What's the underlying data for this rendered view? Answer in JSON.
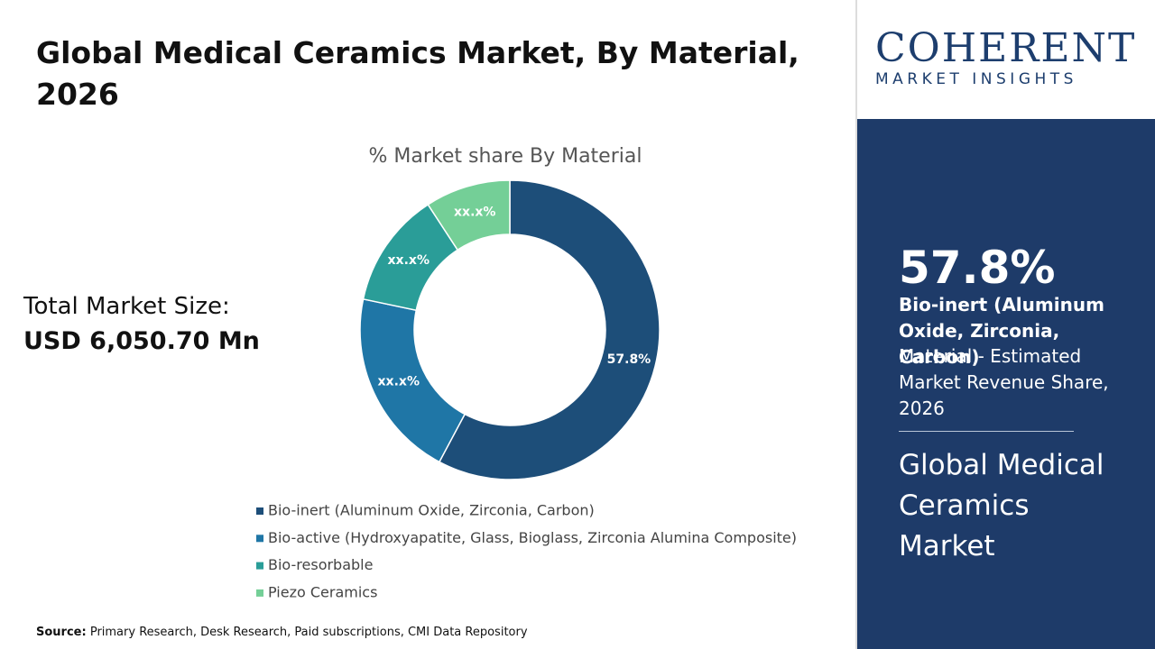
{
  "header": {
    "title": "Global Medical Ceramics Market, By Material, 2026"
  },
  "market_size": {
    "label": "Total Market Size:",
    "value": "USD 6,050.70 Mn"
  },
  "chart_data": {
    "type": "donut",
    "title": "% Market share By Material",
    "categories": [
      "Bio-inert (Aluminum Oxide, Zirconia, Carbon)",
      "Bio-active (Hydroxyapatite, Glass, Bioglass, Zirconia Alumina Composite)",
      "Bio-resorbable",
      "Piezo Ceramics"
    ],
    "values": [
      57.8,
      20.5,
      12.5,
      9.2
    ],
    "value_labels": [
      "57.8%",
      "xx.x%",
      "xx.x%",
      "xx.x%"
    ],
    "colors": [
      "#1d4e79",
      "#1f76a6",
      "#2a9d98",
      "#74cf97"
    ]
  },
  "source": {
    "label": "Source:",
    "text": "Primary Research, Desk Research, Paid subscriptions, CMI Data Repository"
  },
  "logo": {
    "name": "COHERENT",
    "tagline": "MARKET INSIGHTS"
  },
  "panel": {
    "value": "57.8%",
    "segment": "Bio-inert (Aluminum Oxide, Zirconia, Carbon)",
    "description": "Material - Estimated Market Revenue Share, 2026",
    "market": "Global Medical Ceramics Market"
  }
}
